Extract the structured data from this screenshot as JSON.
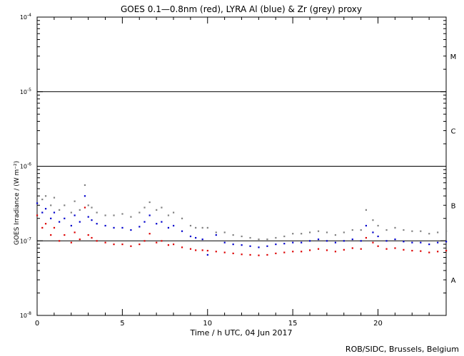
{
  "chart_data": {
    "type": "scatter",
    "title": "GOES 0.1—0.8nm (red), LYRA Al (blue) & Zr (grey) proxy",
    "xlabel": "Time / h UTC, 04 Jun 2017",
    "ylabel": "GOES Irradiance / (W m⁻²)",
    "yscale": "log",
    "xlim": [
      0,
      24
    ],
    "ylim": [
      1e-08,
      0.0001
    ],
    "x_ticks": [
      0,
      5,
      10,
      15,
      20
    ],
    "x_tick_labels": [
      "0",
      "5",
      "10",
      "15",
      "20"
    ],
    "y_ticks": [
      1e-08,
      1e-07,
      1e-06,
      1e-05,
      0.0001
    ],
    "y_tick_labels": [
      {
        "base": "10",
        "exp": "-8"
      },
      {
        "base": "10",
        "exp": "-7"
      },
      {
        "base": "10",
        "exp": "-6"
      },
      {
        "base": "10",
        "exp": "-5"
      },
      {
        "base": "10",
        "exp": "-4"
      }
    ],
    "flare_class_lines": [
      1e-07,
      1e-06,
      1e-05
    ],
    "flare_classes": [
      {
        "label": "A",
        "y": 3e-08
      },
      {
        "label": "B",
        "y": 3e-07
      },
      {
        "label": "C",
        "y": 3e-06
      },
      {
        "label": "M",
        "y": 3e-05
      }
    ],
    "grid": false,
    "series": [
      {
        "color": "#808080",
        "x": [
          0.0,
          0.3,
          0.5,
          0.8,
          1.0,
          1.3,
          1.6,
          2.0,
          2.2,
          2.5,
          2.8,
          3.0,
          3.2,
          3.5,
          4.0,
          4.5,
          5.0,
          5.5,
          6.0,
          6.3,
          6.6,
          7.0,
          7.3,
          7.7,
          8.0,
          8.5,
          9.0,
          9.3,
          9.7,
          10.0,
          10.5,
          11.0,
          11.5,
          12.0,
          12.5,
          13.0,
          13.5,
          14.0,
          14.5,
          15.0,
          15.5,
          16.0,
          16.5,
          17.0,
          17.5,
          18.0,
          18.5,
          19.0,
          19.3,
          19.7,
          20.0,
          20.5,
          21.0,
          21.5,
          22.0,
          22.5,
          23.0,
          23.5,
          24.0
        ],
        "y": [
          4.5e-07,
          3.6e-07,
          4e-07,
          3e-07,
          3.8e-07,
          2.6e-07,
          3e-07,
          2.4e-07,
          3.4e-07,
          2.6e-07,
          5.6e-07,
          3e-07,
          2.8e-07,
          2.4e-07,
          2.2e-07,
          2.2e-07,
          2.3e-07,
          2.1e-07,
          2.4e-07,
          2.8e-07,
          3.3e-07,
          2.6e-07,
          2.8e-07,
          2.2e-07,
          2.4e-07,
          2e-07,
          1.6e-07,
          1.5e-07,
          1.5e-07,
          1.5e-07,
          1.3e-07,
          1.3e-07,
          1.2e-07,
          1.15e-07,
          1.1e-07,
          1.05e-07,
          1.05e-07,
          1.1e-07,
          1.15e-07,
          1.25e-07,
          1.25e-07,
          1.3e-07,
          1.35e-07,
          1.3e-07,
          1.2e-07,
          1.3e-07,
          1.4e-07,
          1.4e-07,
          2.6e-07,
          1.9e-07,
          1.6e-07,
          1.4e-07,
          1.5e-07,
          1.4e-07,
          1.35e-07,
          1.35e-07,
          1.25e-07,
          1.3e-07,
          1.35e-07
        ]
      },
      {
        "color": "#0000cc",
        "x": [
          0.0,
          0.3,
          0.5,
          0.8,
          1.0,
          1.3,
          1.6,
          2.0,
          2.2,
          2.5,
          2.8,
          3.0,
          3.2,
          3.5,
          4.0,
          4.5,
          5.0,
          5.5,
          6.0,
          6.3,
          6.6,
          7.0,
          7.3,
          7.7,
          8.0,
          8.5,
          9.0,
          9.3,
          9.7,
          10.0,
          10.5,
          11.0,
          11.5,
          12.0,
          12.5,
          13.0,
          13.5,
          14.0,
          14.5,
          15.0,
          15.5,
          16.0,
          16.5,
          17.0,
          17.5,
          18.0,
          18.5,
          19.0,
          19.3,
          19.7,
          20.0,
          20.5,
          21.0,
          21.5,
          22.0,
          22.5,
          23.0,
          23.5,
          24.0
        ],
        "y": [
          3.2e-07,
          2.4e-07,
          2.7e-07,
          2e-07,
          2.4e-07,
          1.8e-07,
          2e-07,
          1.6e-07,
          2.2e-07,
          1.8e-07,
          4e-07,
          2.1e-07,
          1.9e-07,
          1.7e-07,
          1.6e-07,
          1.5e-07,
          1.5e-07,
          1.4e-07,
          1.55e-07,
          1.8e-07,
          2.2e-07,
          1.7e-07,
          1.8e-07,
          1.5e-07,
          1.6e-07,
          1.35e-07,
          1.15e-07,
          1.1e-07,
          1.05e-07,
          6.5e-08,
          1.2e-07,
          9.5e-08,
          9e-08,
          8.8e-08,
          8.5e-08,
          8.2e-08,
          8.5e-08,
          9e-08,
          9.2e-08,
          9.5e-08,
          9.5e-08,
          1e-07,
          1.05e-07,
          1e-07,
          9.5e-08,
          1e-07,
          1.05e-07,
          1e-07,
          1.6e-07,
          1.3e-07,
          1.15e-07,
          1e-07,
          1.05e-07,
          9.8e-08,
          9.5e-08,
          9.5e-08,
          9e-08,
          9.5e-08,
          9.8e-08
        ]
      },
      {
        "color": "#dd0000",
        "x": [
          0.0,
          0.3,
          0.5,
          0.8,
          1.0,
          1.3,
          1.6,
          2.0,
          2.2,
          2.5,
          2.8,
          3.0,
          3.2,
          3.5,
          4.0,
          4.5,
          5.0,
          5.5,
          6.0,
          6.3,
          6.6,
          7.0,
          7.3,
          7.7,
          8.0,
          8.5,
          9.0,
          9.3,
          9.7,
          10.0,
          10.5,
          11.0,
          11.5,
          12.0,
          12.5,
          13.0,
          13.5,
          14.0,
          14.5,
          15.0,
          15.5,
          16.0,
          16.5,
          17.0,
          17.5,
          18.0,
          18.5,
          19.0,
          19.3,
          19.7,
          20.0,
          20.5,
          21.0,
          21.5,
          22.0,
          22.5,
          23.0,
          23.5,
          24.0
        ],
        "y": [
          2.2e-07,
          1.5e-07,
          1.7e-07,
          1.2e-07,
          1.5e-07,
          1e-07,
          1.2e-07,
          9.5e-08,
          1.3e-07,
          1.05e-07,
          2.8e-07,
          1.2e-07,
          1.1e-07,
          1e-07,
          9.5e-08,
          9e-08,
          9e-08,
          8.5e-08,
          9e-08,
          1e-07,
          1.25e-07,
          9.5e-08,
          1e-07,
          8.8e-08,
          9e-08,
          8.2e-08,
          7.8e-08,
          7.5e-08,
          7.5e-08,
          7.4e-08,
          7.2e-08,
          7e-08,
          6.8e-08,
          6.6e-08,
          6.5e-08,
          6.4e-08,
          6.5e-08,
          6.8e-08,
          7e-08,
          7.2e-08,
          7.2e-08,
          7.5e-08,
          7.8e-08,
          7.5e-08,
          7.2e-08,
          7.6e-08,
          8e-08,
          7.8e-08,
          1.1e-07,
          9.5e-08,
          8.5e-08,
          7.8e-08,
          8e-08,
          7.6e-08,
          7.4e-08,
          7.3e-08,
          7e-08,
          7.2e-08,
          7.4e-08
        ]
      }
    ]
  },
  "footer": {
    "credit": "ROB/SIDC, Brussels, Belgium"
  }
}
